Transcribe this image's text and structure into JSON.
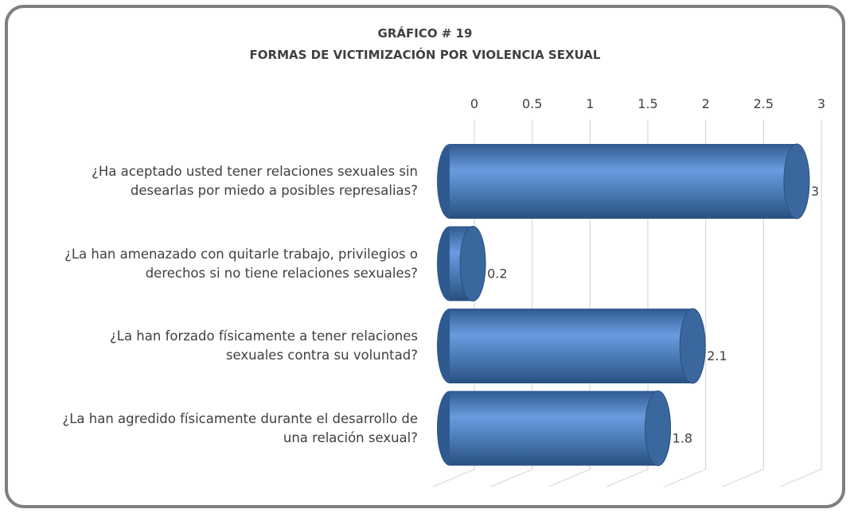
{
  "chart_data": {
    "type": "bar3d",
    "title": "GRÁFICO # 19",
    "subtitle": "FORMAS DE VICTIMIZACIÓN POR VIOLENCIA SEXUAL",
    "orientation": "horizontal",
    "categories": [
      "¿Ha aceptado usted tener relaciones sexuales sin\ndesearlas por miedo a posibles represalias?",
      "¿La han amenazado con quitarle trabajo, privilegios o\nderechos si no tiene relaciones sexuales?",
      "¿La han forzado físicamente a tener relaciones\nsexuales contra su voluntad?",
      "¿La han agredido físicamente durante el desarrollo de\nuna relación sexual?"
    ],
    "values": [
      3,
      0.2,
      2.1,
      1.8
    ],
    "color": "#4f81bd",
    "xlim": [
      0,
      3
    ],
    "xticks": [
      0,
      0.5,
      1,
      1.5,
      2,
      2.5,
      3
    ],
    "grid": true
  }
}
